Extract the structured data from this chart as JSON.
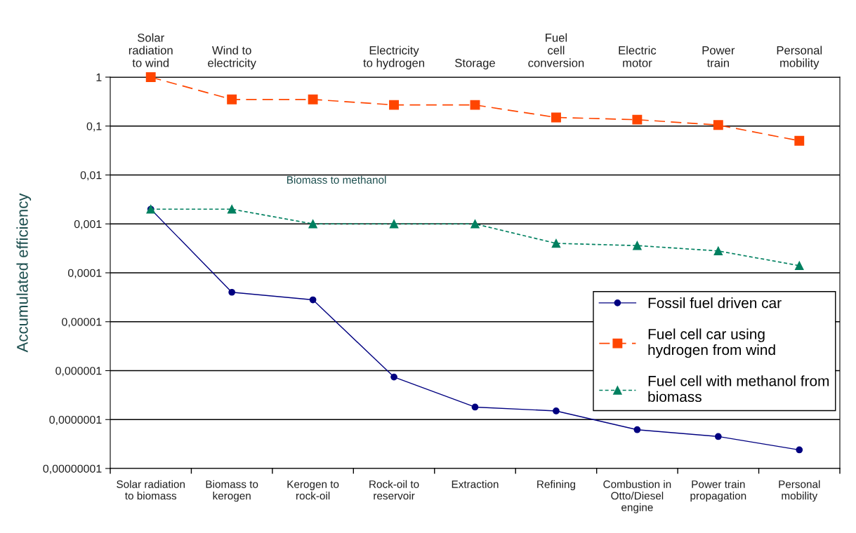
{
  "chart_data": {
    "type": "line",
    "ylabel": "Accumulated efficiency",
    "categories": [
      "Solar radiation\nto biomass",
      "Biomass to\nkerogen",
      "Kerogen to\nrock-oil",
      "Rock-oil to\nreservoir",
      "Extraction",
      "Refining",
      "Combustion in\nOtto/Diesel\nengine",
      "Power train\npropagation",
      "Personal\nmobility"
    ],
    "log": "y",
    "ylim": [
      1e-08,
      1
    ],
    "yticks": [
      {
        "value": 1e-08,
        "label": "0,00000001"
      },
      {
        "value": 1e-07,
        "label": "0,0000001"
      },
      {
        "value": 1e-06,
        "label": "0,000001"
      },
      {
        "value": 1e-05,
        "label": "0,00001"
      },
      {
        "value": 0.0001,
        "label": "0,0001"
      },
      {
        "value": 0.001,
        "label": "0,001"
      },
      {
        "value": 0.01,
        "label": "0,01"
      },
      {
        "value": 0.1,
        "label": "0,1"
      },
      1
    ],
    "grid": "y",
    "legend": "right",
    "series": [
      {
        "name": "Fossil fuel driven car",
        "color": "#000080",
        "marker": "circle",
        "line_style": "solid",
        "values": [
          0.002,
          4e-05,
          2.8e-05,
          7.4e-07,
          1.8e-07,
          1.5e-07,
          6.2e-08,
          4.5e-08,
          2.4e-08
        ]
      },
      {
        "name": "Fuel cell car using\nhydrogen from wind",
        "color": "#ff4500",
        "marker": "square",
        "line_style": "dashed",
        "values": [
          1,
          0.35,
          0.35,
          0.27,
          0.27,
          0.15,
          0.135,
          0.105,
          0.05
        ]
      },
      {
        "name": "Fuel cell with methanol from\nbiomass",
        "color": "#008060",
        "marker": "triangle",
        "line_style": "dotted",
        "values": [
          0.002,
          0.002,
          0.001,
          0.001,
          0.001,
          0.0004,
          0.00036,
          0.00028,
          0.00014
        ]
      }
    ],
    "annotations": [
      "Biomass to methanol",
      "Solar\nradiation\nto wind",
      "Wind to\nelectricity",
      "Electricity\nto hydrogen",
      "Storage",
      "Fuel\ncell\nconversion",
      "Electric\nmotor",
      "Power\ntrain",
      "Personal\nmobility"
    ]
  }
}
